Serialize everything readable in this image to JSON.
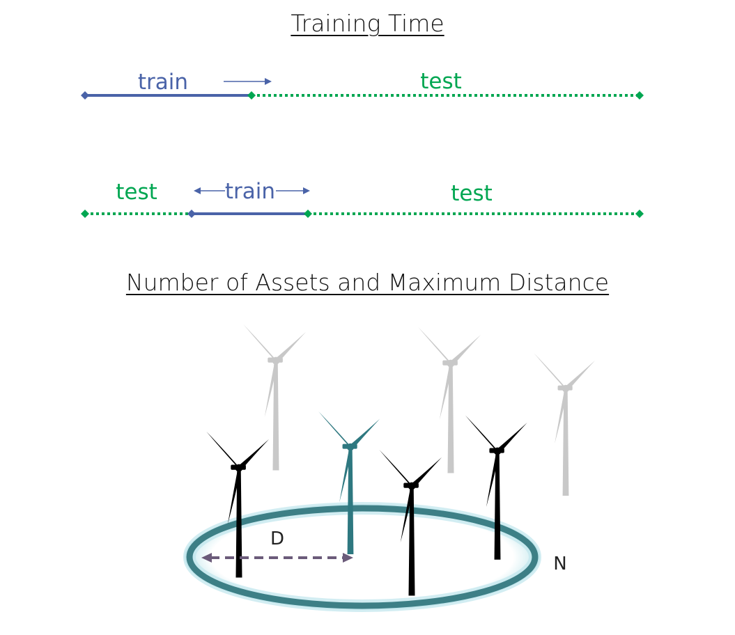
{
  "titles": {
    "training_time": "Training Time",
    "assets": "Number of Assets and Maximum Distance"
  },
  "timeline_1": {
    "train_label": "train",
    "test_label": "test"
  },
  "timeline_2": {
    "test_left_label": "test",
    "train_label": "train",
    "test_right_label": "test"
  },
  "farm": {
    "distance_label": "D",
    "count_label": "N"
  },
  "colors": {
    "train": "#4a63a8",
    "test": "#00a651",
    "highlight_turbine": "#2e7880",
    "background_turbine": "#c8c8c8",
    "turbine": "#000000",
    "distance_arrow": "#6b5b7a",
    "ring": "#3d7f86"
  },
  "icons": [
    "wind-turbine-icon",
    "arrow-right-icon",
    "arrow-left-icon",
    "diamond-marker-icon"
  ]
}
